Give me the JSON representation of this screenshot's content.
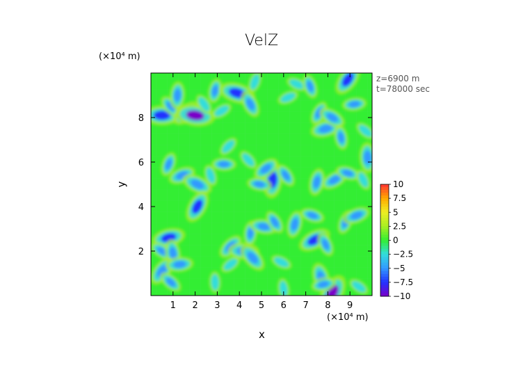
{
  "chart_data": {
    "type": "heatmap",
    "title": "VelZ",
    "xlabel": "x",
    "ylabel": "y",
    "x_unit": "(×10⁴ m)",
    "y_unit": "(×10⁴ m)",
    "xlim": [
      0,
      10
    ],
    "ylim": [
      0,
      10
    ],
    "x_ticks": [
      1,
      2,
      3,
      4,
      5,
      6,
      7,
      8,
      9
    ],
    "y_ticks": [
      2,
      4,
      6,
      8
    ],
    "annotations": [
      "z=6900 m",
      "t=78000 sec"
    ],
    "colorbar": {
      "ticks": [
        "10",
        "7.5",
        "5",
        "2.5",
        "0",
        "−2.5",
        "−5",
        "−7.5",
        "−10"
      ],
      "range": [
        -10,
        10
      ]
    },
    "colormap": {
      "stops": [
        "#7a00c8",
        "#2233ff",
        "#3399ff",
        "#33dddd",
        "#33ee33",
        "#aaee22",
        "#eeee22",
        "#ffaa00",
        "#ff3333"
      ]
    },
    "blobs": [
      {
        "x": 0.5,
        "y": 8.1,
        "v": -8
      },
      {
        "x": 0.9,
        "y": 8.5,
        "v": -4
      },
      {
        "x": 1.2,
        "y": 9.0,
        "v": -5
      },
      {
        "x": 1.6,
        "y": 8.2,
        "v": -6
      },
      {
        "x": 2.0,
        "y": 8.1,
        "v": -9
      },
      {
        "x": 2.4,
        "y": 8.6,
        "v": -3
      },
      {
        "x": 2.9,
        "y": 9.2,
        "v": -4
      },
      {
        "x": 3.2,
        "y": 8.3,
        "v": -3
      },
      {
        "x": 3.9,
        "y": 9.1,
        "v": -8
      },
      {
        "x": 4.5,
        "y": 8.6,
        "v": -5
      },
      {
        "x": 4.7,
        "y": 9.6,
        "v": -3
      },
      {
        "x": 6.2,
        "y": 8.9,
        "v": -3
      },
      {
        "x": 6.6,
        "y": 9.5,
        "v": -3
      },
      {
        "x": 7.2,
        "y": 9.4,
        "v": -4
      },
      {
        "x": 7.6,
        "y": 8.2,
        "v": -4
      },
      {
        "x": 7.9,
        "y": 7.5,
        "v": -6
      },
      {
        "x": 8.2,
        "y": 8.0,
        "v": -5
      },
      {
        "x": 8.6,
        "y": 7.1,
        "v": -4
      },
      {
        "x": 8.9,
        "y": 9.7,
        "v": -7
      },
      {
        "x": 9.2,
        "y": 8.6,
        "v": -4
      },
      {
        "x": 9.7,
        "y": 7.4,
        "v": -3
      },
      {
        "x": 9.8,
        "y": 6.2,
        "v": -6
      },
      {
        "x": 3.5,
        "y": 6.7,
        "v": -3
      },
      {
        "x": 3.3,
        "y": 5.9,
        "v": -4
      },
      {
        "x": 4.4,
        "y": 6.1,
        "v": -3
      },
      {
        "x": 5.5,
        "y": 5.2,
        "v": -8
      },
      {
        "x": 5.2,
        "y": 5.7,
        "v": -5
      },
      {
        "x": 4.9,
        "y": 5.0,
        "v": -4
      },
      {
        "x": 6.1,
        "y": 5.4,
        "v": -4
      },
      {
        "x": 7.5,
        "y": 5.1,
        "v": -5
      },
      {
        "x": 8.3,
        "y": 5.2,
        "v": -5
      },
      {
        "x": 8.9,
        "y": 5.5,
        "v": -4
      },
      {
        "x": 9.6,
        "y": 5.2,
        "v": -3
      },
      {
        "x": 0.8,
        "y": 5.9,
        "v": -4
      },
      {
        "x": 1.4,
        "y": 5.4,
        "v": -5
      },
      {
        "x": 2.1,
        "y": 5.0,
        "v": -6
      },
      {
        "x": 2.7,
        "y": 5.4,
        "v": -3
      },
      {
        "x": 2.1,
        "y": 4.0,
        "v": -7
      },
      {
        "x": 0.8,
        "y": 2.6,
        "v": -7
      },
      {
        "x": 0.5,
        "y": 2.0,
        "v": -4
      },
      {
        "x": 1.0,
        "y": 1.9,
        "v": -5
      },
      {
        "x": 0.5,
        "y": 1.1,
        "v": -6
      },
      {
        "x": 1.3,
        "y": 1.4,
        "v": -5
      },
      {
        "x": 0.9,
        "y": 0.6,
        "v": -4
      },
      {
        "x": 2.9,
        "y": 0.6,
        "v": -3
      },
      {
        "x": 3.6,
        "y": 2.2,
        "v": -5
      },
      {
        "x": 4.2,
        "y": 2.0,
        "v": -6
      },
      {
        "x": 4.6,
        "y": 1.7,
        "v": -6
      },
      {
        "x": 4.5,
        "y": 2.8,
        "v": -4
      },
      {
        "x": 3.6,
        "y": 1.4,
        "v": -3
      },
      {
        "x": 5.1,
        "y": 3.1,
        "v": -5
      },
      {
        "x": 5.6,
        "y": 3.3,
        "v": -4
      },
      {
        "x": 6.5,
        "y": 3.2,
        "v": -5
      },
      {
        "x": 7.4,
        "y": 2.5,
        "v": -7
      },
      {
        "x": 7.3,
        "y": 3.6,
        "v": -4
      },
      {
        "x": 7.9,
        "y": 2.3,
        "v": -4
      },
      {
        "x": 8.8,
        "y": 3.3,
        "v": -4
      },
      {
        "x": 9.3,
        "y": 3.6,
        "v": -5
      },
      {
        "x": 5.9,
        "y": 1.5,
        "v": -3
      },
      {
        "x": 7.7,
        "y": 0.8,
        "v": -6
      },
      {
        "x": 8.2,
        "y": 0.1,
        "v": -9
      },
      {
        "x": 7.8,
        "y": 0.5,
        "v": -4
      },
      {
        "x": 9.4,
        "y": 0.4,
        "v": -3
      },
      {
        "x": 6.0,
        "y": 0.3,
        "v": -3
      }
    ]
  }
}
